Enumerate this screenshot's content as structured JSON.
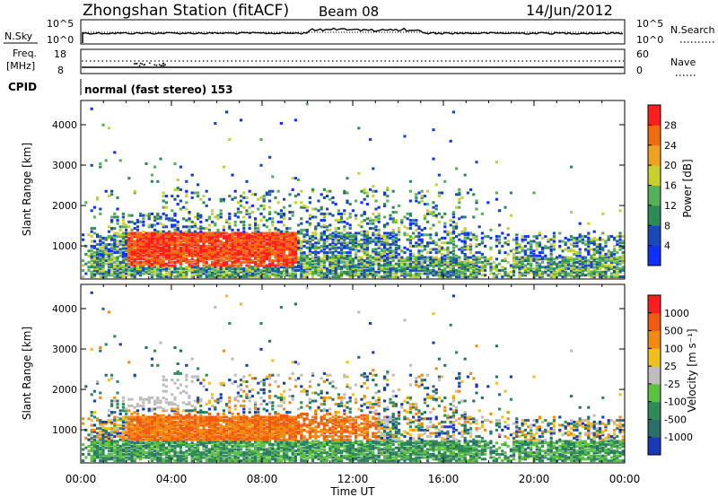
{
  "header": {
    "station": "Zhongshan Station (fitACF)",
    "beam": "Beam 08",
    "date": "14/Jun/2012"
  },
  "panels": {
    "nsky": {
      "label": "N.Sky",
      "tick_top": "10^5",
      "tick_bottom": "10^0",
      "right_label": "N.Search",
      "right_tick_top": "10^5",
      "right_tick_bottom": "10^0"
    },
    "freq": {
      "label": "Freq.",
      "unit": "[MHz]",
      "tick_top": "18",
      "tick_bottom": "8",
      "right_label": "Nave",
      "right_tick_top": "60",
      "right_tick_bottom": "0"
    },
    "cpid": {
      "label": "CPID",
      "mode": "normal (fast stereo) 153"
    }
  },
  "chart_data": [
    {
      "type": "heatmap",
      "title": "",
      "xlabel": "Time UT",
      "ylabel": "Slant Range [km]",
      "x_ticks": [
        "00:00",
        "04:00",
        "08:00",
        "12:00",
        "16:00",
        "20:00",
        "00:00"
      ],
      "y_ticks": [
        1000,
        2000,
        3000,
        4000
      ],
      "ylim": [
        180,
        4600
      ],
      "colorbar": {
        "label": "Power [dB]",
        "ticks": [
          4,
          8,
          12,
          16,
          20,
          24,
          28
        ],
        "colors": [
          "#1030ff",
          "#1a4ab8",
          "#2e8b57",
          "#55b05a",
          "#c8d030",
          "#f0a020",
          "#f06a10",
          "#ff1e1e"
        ]
      }
    },
    {
      "type": "heatmap",
      "title": "",
      "xlabel": "Time UT",
      "ylabel": "Slant Range [km]",
      "x_ticks": [
        "00:00",
        "04:00",
        "08:00",
        "12:00",
        "16:00",
        "20:00",
        "00:00"
      ],
      "y_ticks": [
        1000,
        2000,
        3000,
        4000
      ],
      "ylim": [
        180,
        4600
      ],
      "colorbar": {
        "label": "Velocity [m s⁻¹]",
        "ticks": [
          1000,
          500,
          100,
          25,
          -25,
          -100,
          -500,
          -1000
        ],
        "colors": [
          "#1a3ab8",
          "#2c6f6a",
          "#2e8b57",
          "#5cc040",
          "#bdbdbd",
          "#f0c020",
          "#f08a10",
          "#f05a10",
          "#ff1e1e"
        ]
      }
    }
  ]
}
